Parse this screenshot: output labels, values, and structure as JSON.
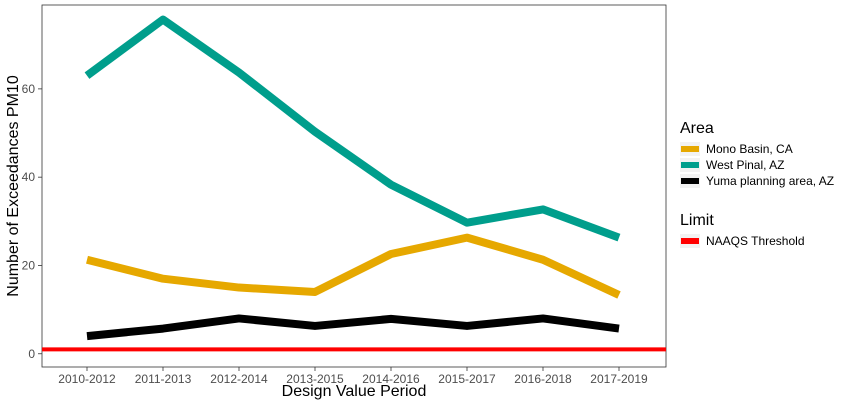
{
  "chart_data": {
    "type": "line",
    "xlabel": "Design Value Period",
    "ylabel": "Number of Exceedances PM10",
    "categories": [
      "2010-2012",
      "2011-2013",
      "2012-2014",
      "2013-2015",
      "2014-2016",
      "2015-2017",
      "2016-2018",
      "2017-2019"
    ],
    "ylim": [
      -3,
      79
    ],
    "yticks": [
      0,
      20,
      40,
      60
    ],
    "grid": false,
    "legend_position": "right",
    "legends": [
      {
        "title": "Area",
        "entries": [
          {
            "label": "Mono Basin, CA",
            "color": "#E6A800"
          },
          {
            "label": "West Pinal, AZ",
            "color": "#009E8C"
          },
          {
            "label": "Yuma planning area, AZ",
            "color": "#000000"
          }
        ]
      },
      {
        "title": "Limit",
        "entries": [
          {
            "label": "NAAQS Threshold",
            "color": "#FF0000"
          }
        ]
      }
    ],
    "series": [
      {
        "name": "Mono Basin, CA",
        "color": "#E6A800",
        "values": [
          21.3,
          17.0,
          15.0,
          14.0,
          22.6,
          26.3,
          21.3,
          13.3
        ]
      },
      {
        "name": "West Pinal, AZ",
        "color": "#009E8C",
        "values": [
          63.0,
          75.7,
          63.7,
          50.3,
          38.3,
          29.7,
          32.7,
          26.3
        ]
      },
      {
        "name": "Yuma planning area, AZ",
        "color": "#000000",
        "values": [
          4.0,
          5.7,
          8.0,
          6.3,
          7.9,
          6.3,
          8.0,
          5.7
        ]
      }
    ],
    "reference_lines": [
      {
        "name": "NAAQS Threshold",
        "value": 1,
        "color": "#FF0000"
      }
    ]
  }
}
